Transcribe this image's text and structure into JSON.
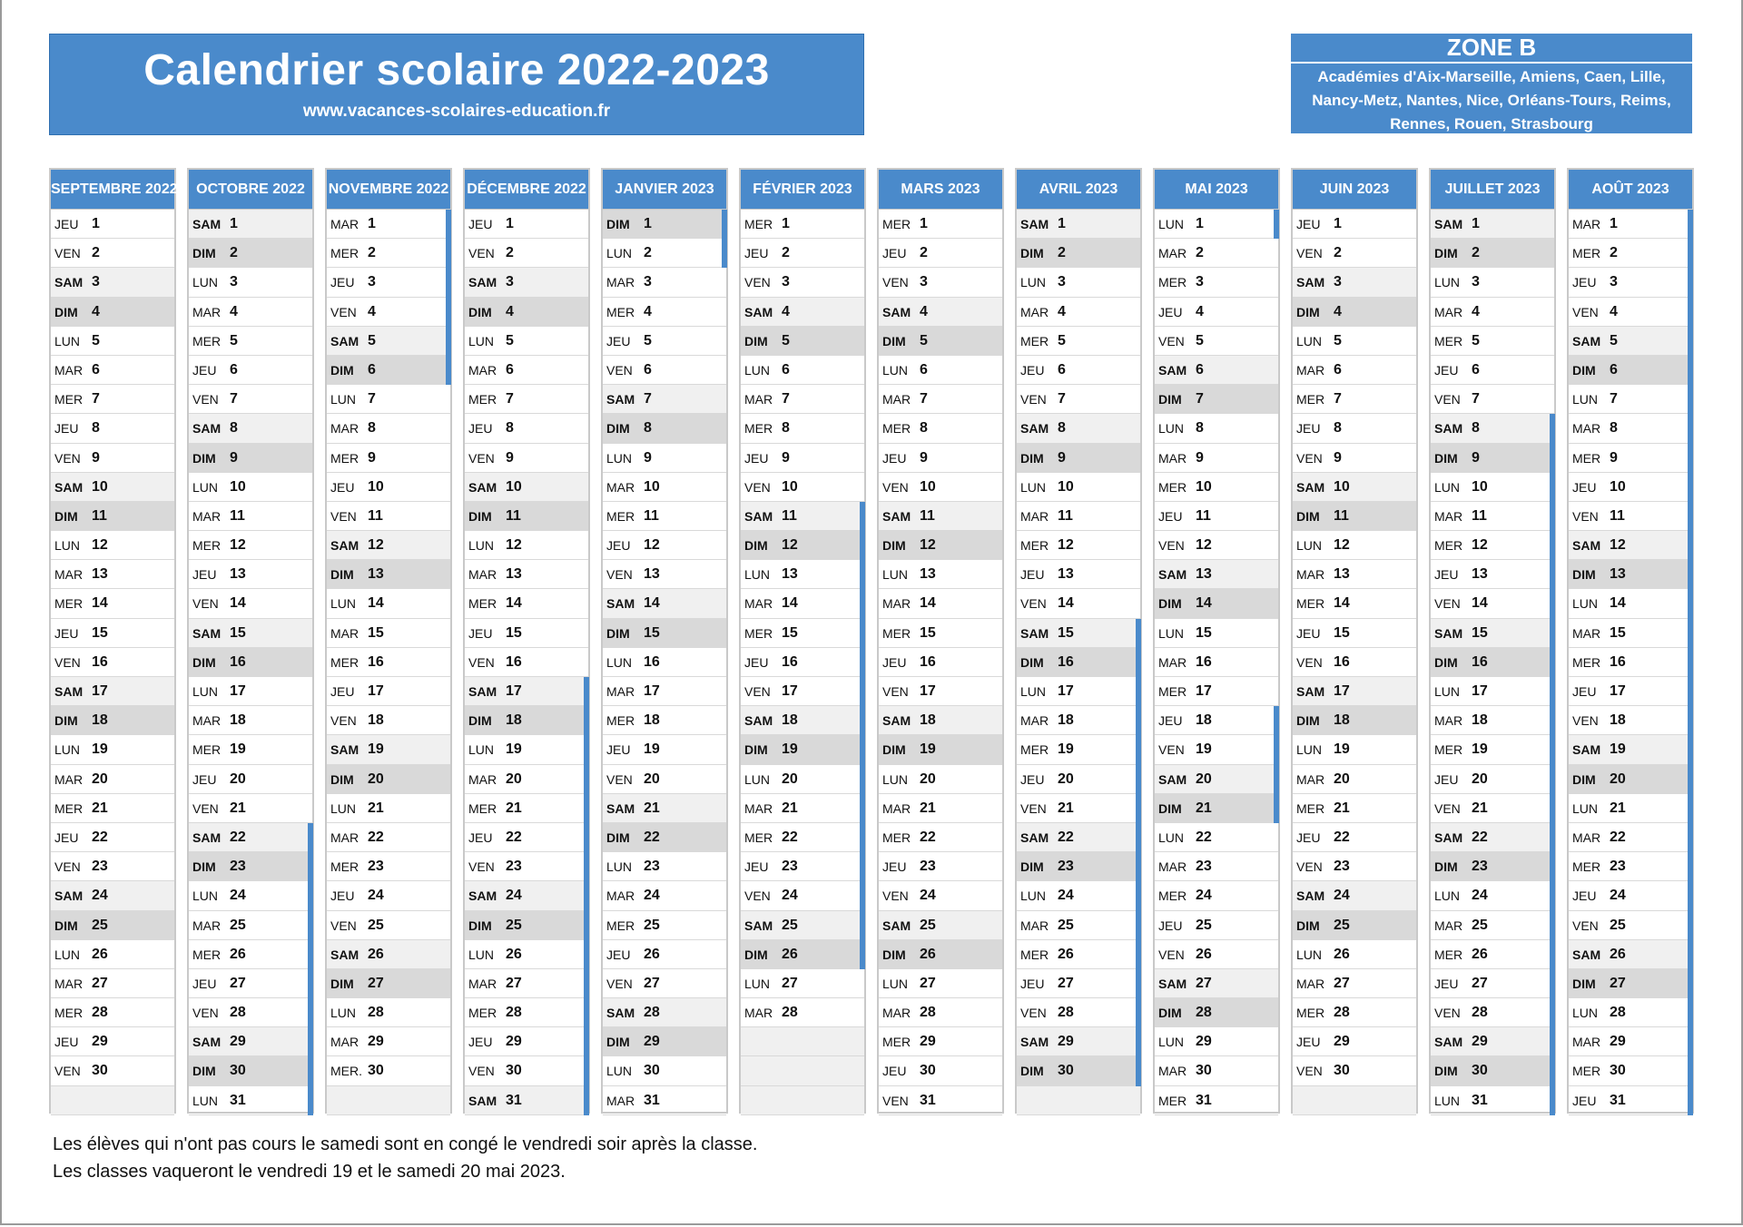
{
  "header": {
    "title": "Calendrier scolaire 2022-2023",
    "website": "www.vacances-scolaires-education.fr"
  },
  "zone": {
    "title": "ZONE B",
    "academies": "Académies d'Aix-Marseille, Amiens, Caen, Lille, Nancy-Metz, Nantes, Nice, Orléans-Tours, Reims, Rennes, Rouen, Strasbourg"
  },
  "colors": {
    "accent": "#4a8acb",
    "saturday": "#f0f0f0",
    "sunday": "#d9d9d9"
  },
  "months": [
    {
      "name": "SEPTEMBRE 2022",
      "days": [
        "JEU",
        "VEN",
        "SAM",
        "DIM",
        "LUN",
        "MAR",
        "MER",
        "JEU",
        "VEN",
        "SAM",
        "DIM",
        "LUN",
        "MAR",
        "MER",
        "JEU",
        "VEN",
        "SAM",
        "DIM",
        "LUN",
        "MAR",
        "MER",
        "JEU",
        "VEN",
        "SAM",
        "DIM",
        "LUN",
        "MAR",
        "MER",
        "JEU",
        "VEN"
      ],
      "holiday_ranges": []
    },
    {
      "name": "OCTOBRE 2022",
      "days": [
        "SAM",
        "DIM",
        "LUN",
        "MAR",
        "MER",
        "JEU",
        "VEN",
        "SAM",
        "DIM",
        "LUN",
        "MAR",
        "MER",
        "JEU",
        "VEN",
        "SAM",
        "DIM",
        "LUN",
        "MAR",
        "MER",
        "JEU",
        "VEN",
        "SAM",
        "DIM",
        "LUN",
        "MAR",
        "MER",
        "JEU",
        "VEN",
        "SAM",
        "DIM",
        "LUN"
      ],
      "holiday_ranges": [
        [
          22,
          31
        ]
      ]
    },
    {
      "name": "NOVEMBRE 2022",
      "days": [
        "MAR",
        "MER",
        "JEU",
        "VEN",
        "SAM",
        "DIM",
        "LUN",
        "MAR",
        "MER",
        "JEU",
        "VEN",
        "SAM",
        "DIM",
        "LUN",
        "MAR",
        "MER",
        "JEU",
        "VEN",
        "SAM",
        "DIM",
        "LUN",
        "MAR",
        "MER",
        "JEU",
        "VEN",
        "SAM",
        "DIM",
        "LUN",
        "MAR",
        "MER."
      ],
      "holiday_ranges": [
        [
          1,
          6
        ]
      ]
    },
    {
      "name": "DÉCEMBRE 2022",
      "days": [
        "JEU",
        "VEN",
        "SAM",
        "DIM",
        "LUN",
        "MAR",
        "MER",
        "JEU",
        "VEN",
        "SAM",
        "DIM",
        "LUN",
        "MAR",
        "MER",
        "JEU",
        "VEN",
        "SAM",
        "DIM",
        "LUN",
        "MAR",
        "MER",
        "JEU",
        "VEN",
        "SAM",
        "DIM",
        "LUN",
        "MAR",
        "MER",
        "JEU",
        "VEN",
        "SAM"
      ],
      "holiday_ranges": [
        [
          17,
          31
        ]
      ]
    },
    {
      "name": "JANVIER 2023",
      "days": [
        "DIM",
        "LUN",
        "MAR",
        "MER",
        "JEU",
        "VEN",
        "SAM",
        "DIM",
        "LUN",
        "MAR",
        "MER",
        "JEU",
        "VEN",
        "SAM",
        "DIM",
        "LUN",
        "MAR",
        "MER",
        "JEU",
        "VEN",
        "SAM",
        "DIM",
        "LUN",
        "MAR",
        "MER",
        "JEU",
        "VEN",
        "SAM",
        "DIM",
        "LUN",
        "MAR"
      ],
      "holiday_ranges": [
        [
          1,
          2
        ]
      ]
    },
    {
      "name": "FÉVRIER 2023",
      "days": [
        "MER",
        "JEU",
        "VEN",
        "SAM",
        "DIM",
        "LUN",
        "MAR",
        "MER",
        "JEU",
        "VEN",
        "SAM",
        "DIM",
        "LUN",
        "MAR",
        "MER",
        "JEU",
        "VEN",
        "SAM",
        "DIM",
        "LUN",
        "MAR",
        "MER",
        "JEU",
        "VEN",
        "SAM",
        "DIM",
        "LUN",
        "MAR"
      ],
      "holiday_ranges": [
        [
          11,
          26
        ]
      ]
    },
    {
      "name": "MARS 2023",
      "days": [
        "MER",
        "JEU",
        "VEN",
        "SAM",
        "DIM",
        "LUN",
        "MAR",
        "MER",
        "JEU",
        "VEN",
        "SAM",
        "DIM",
        "LUN",
        "MAR",
        "MER",
        "JEU",
        "VEN",
        "SAM",
        "DIM",
        "LUN",
        "MAR",
        "MER",
        "JEU",
        "VEN",
        "SAM",
        "DIM",
        "LUN",
        "MAR",
        "MER",
        "JEU",
        "VEN"
      ],
      "holiday_ranges": []
    },
    {
      "name": "AVRIL 2023",
      "days": [
        "SAM",
        "DIM",
        "LUN",
        "MAR",
        "MER",
        "JEU",
        "VEN",
        "SAM",
        "DIM",
        "LUN",
        "MAR",
        "MER",
        "JEU",
        "VEN",
        "SAM",
        "DIM",
        "LUN",
        "MAR",
        "MER",
        "JEU",
        "VEN",
        "SAM",
        "DIM",
        "LUN",
        "MAR",
        "MER",
        "JEU",
        "VEN",
        "SAM",
        "DIM"
      ],
      "holiday_ranges": [
        [
          15,
          30
        ]
      ]
    },
    {
      "name": "MAI 2023",
      "days": [
        "LUN",
        "MAR",
        "MER",
        "JEU",
        "VEN",
        "SAM",
        "DIM",
        "LUN",
        "MAR",
        "MER",
        "JEU",
        "VEN",
        "SAM",
        "DIM",
        "LUN",
        "MAR",
        "MER",
        "JEU",
        "VEN",
        "SAM",
        "DIM",
        "LUN",
        "MAR",
        "MER",
        "JEU",
        "VEN",
        "SAM",
        "DIM",
        "LUN",
        "MAR",
        "MER"
      ],
      "holiday_ranges": [
        [
          1,
          1
        ],
        [
          18,
          21
        ]
      ]
    },
    {
      "name": "JUIN 2023",
      "days": [
        "JEU",
        "VEN",
        "SAM",
        "DIM",
        "LUN",
        "MAR",
        "MER",
        "JEU",
        "VEN",
        "SAM",
        "DIM",
        "LUN",
        "MAR",
        "MER",
        "JEU",
        "VEN",
        "SAM",
        "DIM",
        "LUN",
        "MAR",
        "MER",
        "JEU",
        "VEN",
        "SAM",
        "DIM",
        "LUN",
        "MAR",
        "MER",
        "JEU",
        "VEN"
      ],
      "holiday_ranges": []
    },
    {
      "name": "JUILLET 2023",
      "days": [
        "SAM",
        "DIM",
        "LUN",
        "MAR",
        "MER",
        "JEU",
        "VEN",
        "SAM",
        "DIM",
        "LUN",
        "MAR",
        "MER",
        "JEU",
        "VEN",
        "SAM",
        "DIM",
        "LUN",
        "MAR",
        "MER",
        "JEU",
        "VEN",
        "SAM",
        "DIM",
        "LUN",
        "MAR",
        "MER",
        "JEU",
        "VEN",
        "SAM",
        "DIM",
        "LUN"
      ],
      "holiday_ranges": [
        [
          8,
          31
        ]
      ]
    },
    {
      "name": "AOÛT 2023",
      "days": [
        "MAR",
        "MER",
        "JEU",
        "VEN",
        "SAM",
        "DIM",
        "LUN",
        "MAR",
        "MER",
        "JEU",
        "VEN",
        "SAM",
        "DIM",
        "LUN",
        "MAR",
        "MER",
        "JEU",
        "VEN",
        "SAM",
        "DIM",
        "LUN",
        "MAR",
        "MER",
        "JEU",
        "VEN",
        "SAM",
        "DIM",
        "LUN",
        "MAR",
        "MER",
        "JEU"
      ],
      "holiday_ranges": [
        [
          1,
          31
        ]
      ]
    }
  ],
  "footer": {
    "line1": "Les élèves qui n'ont pas cours le samedi sont en congé le vendredi soir après la classe.",
    "line2": "Les classes vaqueront le vendredi 19 et le samedi 20 mai 2023."
  }
}
